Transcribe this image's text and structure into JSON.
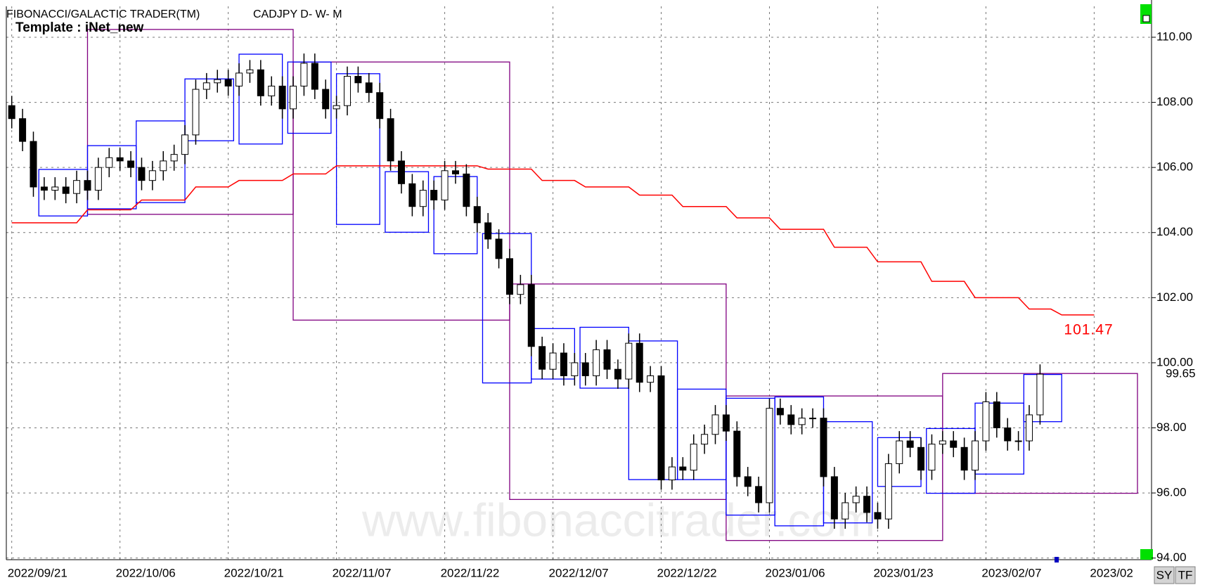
{
  "header": {
    "title": "FIBONACCI/GALACTIC TRADER(TM)",
    "symbol": "CADJPY D- W- M",
    "template": "Template : iNet_new"
  },
  "watermark": "www.fibonaccitrader.com",
  "buttons": [
    "SY",
    "TF"
  ],
  "chart_data": {
    "type": "candlestick",
    "categories": [
      "2022/09/21",
      null,
      null,
      null,
      null,
      null,
      null,
      null,
      null,
      null,
      "2022/10/06",
      null,
      null,
      null,
      null,
      null,
      null,
      null,
      null,
      null,
      "2022/10/21",
      null,
      null,
      null,
      null,
      null,
      null,
      null,
      null,
      null,
      "2022/11/07",
      null,
      null,
      null,
      null,
      null,
      null,
      null,
      null,
      null,
      "2022/11/22",
      null,
      null,
      null,
      null,
      null,
      null,
      null,
      null,
      null,
      "2022/12/07",
      null,
      null,
      null,
      null,
      null,
      null,
      null,
      null,
      null,
      "2022/12/22",
      null,
      null,
      null,
      null,
      null,
      null,
      null,
      null,
      null,
      "2023/01/06",
      null,
      null,
      null,
      null,
      null,
      null,
      null,
      null,
      null,
      "2023/01/23",
      null,
      null,
      null,
      null,
      null,
      null,
      null,
      null,
      null,
      "2023/02/07",
      null,
      null,
      null,
      null,
      null,
      null,
      null,
      null,
      null,
      "2023/02"
    ],
    "open": [
      107.9,
      107.5,
      106.8,
      105.4,
      105.3,
      105.4,
      105.2,
      105.6,
      105.3,
      106.0,
      106.3,
      106.2,
      106.0,
      105.6,
      105.9,
      106.2,
      106.4,
      107.0,
      108.4,
      108.6,
      108.7,
      108.5,
      108.9,
      109.0,
      108.2,
      108.5,
      107.8,
      108.5,
      109.2,
      108.4,
      107.8,
      107.9,
      108.8,
      108.6,
      108.3,
      107.5,
      106.2,
      105.5,
      104.8,
      105.3,
      105.0,
      105.9,
      105.8,
      104.8,
      104.3,
      103.8,
      103.2,
      102.1,
      102.4,
      100.5,
      99.8,
      100.3,
      99.6,
      100.0,
      99.6,
      100.4,
      99.8,
      99.5,
      100.6,
      99.4,
      99.6,
      96.4,
      96.8,
      96.7,
      97.5,
      97.8,
      98.4,
      97.9,
      96.5,
      96.2,
      95.7,
      98.6,
      98.4,
      98.1,
      98.3,
      98.3,
      96.5,
      95.2,
      95.7,
      95.9,
      95.4,
      95.2,
      96.9,
      97.6,
      97.4,
      96.7,
      97.5,
      97.6,
      97.4,
      96.7,
      97.6,
      98.8,
      98.0,
      97.6,
      97.6,
      98.4,
      null,
      null,
      null,
      null,
      null
    ],
    "high": [
      108.2,
      107.8,
      107.1,
      105.7,
      105.7,
      105.7,
      105.9,
      105.9,
      106.3,
      106.6,
      106.6,
      106.5,
      106.3,
      106.2,
      106.5,
      106.7,
      107.3,
      108.7,
      108.9,
      109.0,
      109.0,
      109.2,
      109.3,
      109.3,
      108.8,
      108.8,
      108.8,
      109.5,
      109.5,
      108.7,
      108.2,
      109.1,
      109.1,
      108.9,
      108.6,
      107.8,
      106.5,
      105.8,
      105.6,
      105.6,
      106.2,
      106.2,
      106.1,
      105.1,
      104.6,
      104.1,
      103.5,
      102.7,
      102.7,
      100.8,
      100.6,
      100.6,
      100.3,
      100.3,
      100.7,
      100.7,
      100.1,
      100.9,
      100.9,
      99.9,
      99.9,
      97.1,
      97.1,
      97.8,
      98.1,
      98.7,
      98.7,
      98.2,
      96.8,
      96.5,
      98.9,
      98.9,
      98.7,
      98.6,
      98.6,
      98.6,
      96.8,
      96.0,
      96.2,
      96.2,
      95.7,
      97.2,
      97.9,
      97.9,
      97.7,
      97.8,
      97.9,
      97.9,
      97.7,
      97.9,
      99.1,
      99.1,
      98.3,
      97.9,
      98.7,
      99.95,
      null,
      null,
      null,
      null,
      null
    ],
    "low": [
      107.2,
      106.5,
      105.1,
      105.0,
      105.0,
      104.9,
      104.9,
      105.0,
      105.0,
      105.7,
      105.9,
      105.7,
      105.3,
      105.3,
      105.6,
      105.9,
      106.1,
      106.7,
      108.1,
      108.3,
      108.2,
      108.2,
      108.6,
      107.9,
      107.9,
      107.5,
      107.5,
      108.2,
      108.1,
      107.5,
      107.5,
      107.6,
      108.3,
      108.0,
      107.2,
      105.9,
      105.2,
      104.5,
      104.5,
      104.7,
      104.7,
      105.5,
      104.5,
      104.0,
      103.5,
      102.9,
      101.8,
      101.8,
      100.2,
      99.5,
      99.5,
      99.3,
      99.3,
      99.3,
      99.3,
      99.5,
      99.2,
      99.2,
      99.1,
      99.1,
      96.1,
      96.1,
      96.4,
      96.4,
      97.2,
      97.5,
      97.6,
      96.2,
      95.9,
      95.4,
      95.4,
      98.1,
      97.8,
      97.8,
      98.0,
      96.2,
      94.9,
      94.9,
      95.4,
      95.1,
      94.9,
      94.9,
      96.6,
      97.1,
      96.4,
      96.4,
      97.2,
      97.1,
      96.4,
      96.4,
      97.3,
      97.7,
      97.3,
      97.3,
      97.3,
      98.1,
      null,
      null,
      null,
      null,
      null
    ],
    "close": [
      107.5,
      106.8,
      105.4,
      105.3,
      105.4,
      105.2,
      105.6,
      105.3,
      106.0,
      106.3,
      106.2,
      106.0,
      105.6,
      105.9,
      106.2,
      106.4,
      107.0,
      108.4,
      108.6,
      108.7,
      108.5,
      108.9,
      109.0,
      108.2,
      108.5,
      107.8,
      108.5,
      109.2,
      108.4,
      107.8,
      107.9,
      108.8,
      108.6,
      108.3,
      107.5,
      106.2,
      105.5,
      104.8,
      105.3,
      105.0,
      105.9,
      105.8,
      104.8,
      104.3,
      103.8,
      103.2,
      102.1,
      102.4,
      100.5,
      99.8,
      100.3,
      99.6,
      100.0,
      99.6,
      100.4,
      99.8,
      99.5,
      100.6,
      99.4,
      99.6,
      96.4,
      96.8,
      96.7,
      97.5,
      97.8,
      98.4,
      97.9,
      96.5,
      96.2,
      95.7,
      98.6,
      98.4,
      98.1,
      98.3,
      98.3,
      96.5,
      95.2,
      95.7,
      95.9,
      95.4,
      95.2,
      96.9,
      97.6,
      97.4,
      96.7,
      97.5,
      97.6,
      97.4,
      96.7,
      97.6,
      98.8,
      98.0,
      97.6,
      97.6,
      98.4,
      99.65,
      null,
      null,
      null,
      null,
      null
    ],
    "up_color": "#ffffff",
    "down_color": "#000000",
    "xlim": [
      -0.5,
      105.3
    ],
    "ylim": [
      93.95,
      110.95
    ],
    "yticks": [
      {
        "value": 94,
        "label": "94.00"
      },
      {
        "value": 96,
        "label": "96.00"
      },
      {
        "value": 98,
        "label": "98.00"
      },
      {
        "value": 100,
        "label": "100.00"
      },
      {
        "value": 102,
        "label": "102.00"
      },
      {
        "value": 104,
        "label": "104.00"
      },
      {
        "value": 106,
        "label": "106.00"
      },
      {
        "value": 108,
        "label": "108.00"
      },
      {
        "value": 110,
        "label": "110.00"
      }
    ],
    "grid": true,
    "last_price": 99.65,
    "line": {
      "color": "#ff0000",
      "end_label": 101.47,
      "values": [
        104.3,
        104.3,
        104.3,
        104.3,
        104.3,
        104.3,
        104.3,
        104.7,
        104.7,
        104.7,
        104.7,
        104.7,
        105.0,
        105.0,
        105.0,
        105.0,
        105.0,
        105.4,
        105.4,
        105.4,
        105.4,
        105.6,
        105.6,
        105.6,
        105.6,
        105.6,
        105.8,
        105.8,
        105.8,
        105.8,
        106.05,
        106.05,
        106.05,
        106.05,
        106.05,
        106.05,
        106.05,
        106.05,
        106.05,
        106.05,
        106.05,
        106.05,
        106.05,
        106.05,
        105.95,
        105.95,
        105.95,
        105.95,
        105.95,
        105.6,
        105.6,
        105.6,
        105.6,
        105.4,
        105.4,
        105.4,
        105.4,
        105.4,
        105.15,
        105.15,
        105.15,
        105.15,
        104.8,
        104.8,
        104.8,
        104.8,
        104.8,
        104.45,
        104.45,
        104.45,
        104.45,
        104.1,
        104.1,
        104.1,
        104.1,
        104.1,
        103.55,
        103.55,
        103.55,
        103.55,
        103.1,
        103.1,
        103.1,
        103.1,
        103.1,
        102.5,
        102.5,
        102.5,
        102.5,
        102.0,
        102.0,
        102.0,
        102.0,
        102.0,
        101.65,
        101.65,
        101.65,
        101.47,
        101.47,
        101.47,
        101.47
      ]
    },
    "box_sets": [
      {
        "color": "#800080",
        "boxes": [
          {
            "x0": 7,
            "x1": 26,
            "low": 104.56,
            "high": 110.24
          },
          {
            "x0": 26,
            "x1": 46,
            "low": 101.31,
            "high": 109.24
          },
          {
            "x0": 46,
            "x1": 66,
            "low": 95.8,
            "high": 102.42
          },
          {
            "x0": 66,
            "x1": 86,
            "low": 94.54,
            "high": 98.98
          },
          {
            "x0": 86,
            "x1": 104,
            "low": 95.99,
            "high": 99.67
          }
        ]
      },
      {
        "color": "#0000ff",
        "boxes": [
          {
            "x0": 2.5,
            "x1": 7,
            "low": 104.51,
            "high": 105.94
          },
          {
            "x0": 7,
            "x1": 11.5,
            "low": 104.73,
            "high": 106.67
          },
          {
            "x0": 11.5,
            "x1": 16,
            "low": 104.92,
            "high": 107.43
          },
          {
            "x0": 16,
            "x1": 20.5,
            "low": 106.82,
            "high": 108.72
          },
          {
            "x0": 21,
            "x1": 25,
            "low": 106.72,
            "high": 109.48
          },
          {
            "x0": 25.5,
            "x1": 29.5,
            "low": 107.05,
            "high": 109.24
          },
          {
            "x0": 30,
            "x1": 34,
            "low": 104.25,
            "high": 108.88
          },
          {
            "x0": 34.5,
            "x1": 38.5,
            "low": 104.01,
            "high": 105.87
          },
          {
            "x0": 39,
            "x1": 43,
            "low": 103.35,
            "high": 105.72
          },
          {
            "x0": 43.5,
            "x1": 48,
            "low": 99.38,
            "high": 103.97
          },
          {
            "x0": 48,
            "x1": 52,
            "low": 99.5,
            "high": 101.05
          },
          {
            "x0": 52.5,
            "x1": 57,
            "low": 99.22,
            "high": 101.09
          },
          {
            "x0": 57,
            "x1": 61.5,
            "low": 96.41,
            "high": 100.67
          },
          {
            "x0": 61.5,
            "x1": 66,
            "low": 96.41,
            "high": 99.19
          },
          {
            "x0": 66,
            "x1": 70.5,
            "low": 95.32,
            "high": 98.91
          },
          {
            "x0": 70.5,
            "x1": 75,
            "low": 94.99,
            "high": 98.95
          },
          {
            "x0": 75,
            "x1": 79.5,
            "low": 95.08,
            "high": 98.19
          },
          {
            "x0": 80,
            "x1": 84,
            "low": 96.2,
            "high": 97.7
          },
          {
            "x0": 84.5,
            "x1": 89,
            "low": 95.99,
            "high": 97.98
          },
          {
            "x0": 89,
            "x1": 93.5,
            "low": 96.58,
            "high": 98.76
          },
          {
            "x0": 93.5,
            "x1": 97,
            "low": 98.19,
            "high": 99.64
          }
        ]
      }
    ]
  }
}
